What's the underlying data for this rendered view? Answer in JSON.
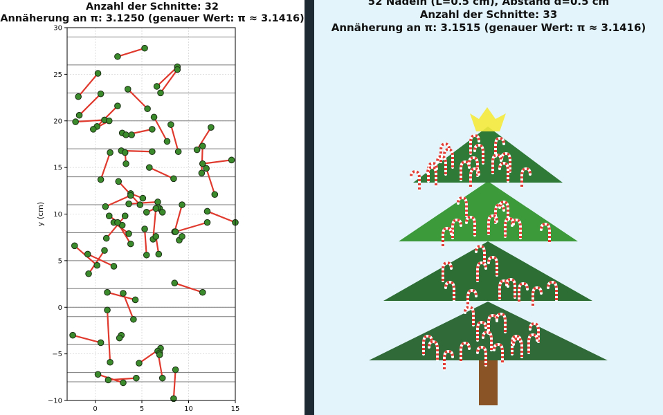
{
  "chart_data": [
    {
      "type": "scatter",
      "title_lines": [
        "Anzahl der Schnitte: 32",
        "Annäherung an π: 3.1250 (genauer Wert: π ≈ 3.1416)"
      ],
      "ylabel": "y (cm)",
      "xlabel": "",
      "xlim": [
        -3,
        15
      ],
      "ylim": [
        -10,
        30
      ],
      "xticks": [
        0,
        5,
        10,
        15
      ],
      "yticks": [
        -10,
        -5,
        0,
        5,
        10,
        15,
        20,
        25,
        30
      ],
      "horizontal_lines_y": [
        -8,
        -7,
        -4,
        -1,
        0,
        2,
        5,
        8,
        11,
        14,
        17,
        20,
        23,
        26,
        29
      ],
      "grid": true,
      "colors": {
        "needle": "#e03a2e",
        "endpoint_fill": "#3b8a2c",
        "endpoint_edge": "#1b2e14",
        "hline": "#7a7a7a"
      },
      "needles": [
        [
          [
            2.4,
            26.9
          ],
          [
            5.3,
            27.8
          ]
        ],
        [
          [
            6.6,
            23.7
          ],
          [
            8.8,
            25.8
          ]
        ],
        [
          [
            7.0,
            23.0
          ],
          [
            8.8,
            25.5
          ]
        ],
        [
          [
            0.3,
            25.1
          ],
          [
            -1.8,
            22.6
          ]
        ],
        [
          [
            0.6,
            22.9
          ],
          [
            -1.7,
            20.6
          ]
        ],
        [
          [
            3.5,
            23.4
          ],
          [
            5.6,
            21.3
          ]
        ],
        [
          [
            1.0,
            20.1
          ],
          [
            -2.1,
            19.9
          ]
        ],
        [
          [
            0.2,
            19.4
          ],
          [
            2.4,
            21.6
          ]
        ],
        [
          [
            -0.2,
            19.1
          ],
          [
            1.5,
            20.0
          ]
        ],
        [
          [
            2.9,
            18.7
          ],
          [
            3.9,
            18.5
          ]
        ],
        [
          [
            3.3,
            18.5
          ],
          [
            6.1,
            19.1
          ]
        ],
        [
          [
            6.3,
            20.4
          ],
          [
            7.7,
            17.8
          ]
        ],
        [
          [
            8.1,
            19.6
          ],
          [
            8.9,
            16.7
          ]
        ],
        [
          [
            10.9,
            16.9
          ],
          [
            12.4,
            19.3
          ]
        ],
        [
          [
            11.5,
            17.3
          ],
          [
            11.4,
            14.4
          ]
        ],
        [
          [
            11.5,
            15.4
          ],
          [
            14.6,
            15.8
          ]
        ],
        [
          [
            11.9,
            14.9
          ],
          [
            12.8,
            12.1
          ]
        ],
        [
          [
            1.6,
            16.6
          ],
          [
            0.6,
            13.7
          ]
        ],
        [
          [
            2.8,
            16.8
          ],
          [
            6.1,
            16.7
          ]
        ],
        [
          [
            3.2,
            16.6
          ],
          [
            3.3,
            15.4
          ]
        ],
        [
          [
            5.8,
            15.0
          ],
          [
            8.4,
            13.8
          ]
        ],
        [
          [
            2.5,
            13.5
          ],
          [
            4.8,
            11.0
          ]
        ],
        [
          [
            3.8,
            12.2
          ],
          [
            5.1,
            11.7
          ]
        ],
        [
          [
            1.1,
            10.8
          ],
          [
            3.8,
            12.0
          ]
        ],
        [
          [
            3.6,
            11.1
          ],
          [
            6.7,
            11.3
          ]
        ],
        [
          [
            6.9,
            10.6
          ],
          [
            7.2,
            10.2
          ]
        ],
        [
          [
            5.5,
            10.2
          ],
          [
            6.7,
            10.7
          ]
        ],
        [
          [
            1.5,
            9.8
          ],
          [
            2.9,
            8.8
          ]
        ],
        [
          [
            1.2,
            7.4
          ],
          [
            3.2,
            9.8
          ]
        ],
        [
          [
            2.0,
            9.1
          ],
          [
            3.6,
            7.9
          ]
        ],
        [
          [
            2.4,
            9.1
          ],
          [
            3.8,
            6.8
          ]
        ],
        [
          [
            5.3,
            8.4
          ],
          [
            5.5,
            5.6
          ]
        ],
        [
          [
            6.5,
            10.6
          ],
          [
            6.2,
            7.3
          ]
        ],
        [
          [
            6.5,
            7.6
          ],
          [
            6.8,
            5.7
          ]
        ],
        [
          [
            8.5,
            8.1
          ],
          [
            9.3,
            11.0
          ]
        ],
        [
          [
            9.0,
            7.2
          ],
          [
            9.3,
            7.6
          ]
        ],
        [
          [
            12.0,
            10.3
          ],
          [
            15.0,
            9.1
          ]
        ],
        [
          [
            8.6,
            8.1
          ],
          [
            12.0,
            9.1
          ]
        ],
        [
          [
            -2.2,
            6.6
          ],
          [
            0.2,
            4.5
          ]
        ],
        [
          [
            -0.8,
            5.7
          ],
          [
            2.0,
            4.4
          ]
        ],
        [
          [
            -0.7,
            3.6
          ],
          [
            1.0,
            6.1
          ]
        ],
        [
          [
            8.5,
            2.6
          ],
          [
            11.5,
            1.6
          ]
        ],
        [
          [
            1.3,
            1.6
          ],
          [
            4.3,
            0.8
          ]
        ],
        [
          [
            3.0,
            1.5
          ],
          [
            4.1,
            -1.3
          ]
        ],
        [
          [
            1.3,
            -0.3
          ],
          [
            1.6,
            -5.9
          ]
        ],
        [
          [
            2.8,
            -3.0
          ],
          [
            2.6,
            -3.3
          ]
        ],
        [
          [
            -2.4,
            -3.0
          ],
          [
            0.6,
            -3.8
          ]
        ],
        [
          [
            4.7,
            -6.0
          ],
          [
            7.0,
            -4.4
          ]
        ],
        [
          [
            6.7,
            -4.7
          ],
          [
            7.2,
            -7.6
          ]
        ],
        [
          [
            6.9,
            -4.9
          ],
          [
            6.9,
            -5.1
          ]
        ],
        [
          [
            0.3,
            -7.2
          ],
          [
            3.0,
            -8.1
          ]
        ],
        [
          [
            1.4,
            -7.8
          ],
          [
            4.4,
            -7.6
          ]
        ],
        [
          [
            8.6,
            -6.7
          ],
          [
            8.4,
            -9.8
          ]
        ]
      ]
    },
    {
      "type": "scatter",
      "title_lines": [
        "52 Nadeln (L=0.5 cm), Abstand d=0.5 cm",
        "Anzahl der Schnitte: 33",
        "Annäherung an π: 3.1515 (genauer Wert: π ≈ 3.1416)"
      ],
      "colors": {
        "background": "#e3f5fb",
        "star": "#f5ea3c",
        "tier_top": "#2f7a36",
        "tier_mid": "#3c9a3a",
        "tier_3": "#2d6e35",
        "tier_bottom": "#2f6a38",
        "trunk": "#8a5426",
        "candy_white": "#ffffff",
        "candy_red": "#e23b33"
      },
      "candy_count": 52
    }
  ]
}
